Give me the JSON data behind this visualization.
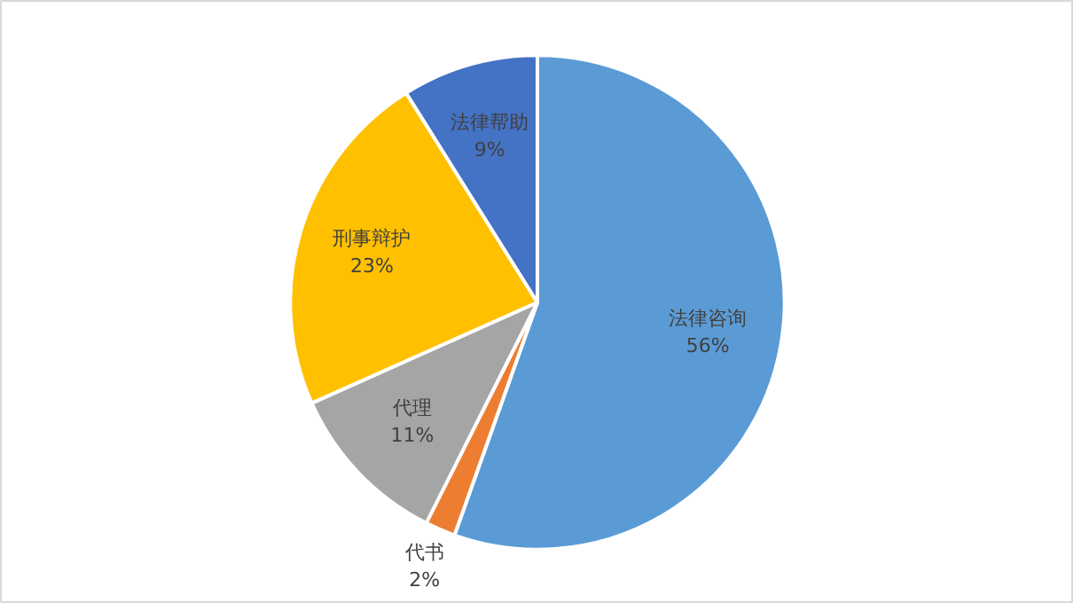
{
  "chart_data": {
    "type": "pie",
    "categories": [
      "法律咨询",
      "代书",
      "代理",
      "刑事辩护",
      "法律帮助"
    ],
    "values": [
      56,
      2,
      11,
      23,
      9
    ],
    "colors": [
      "#5b9bd5",
      "#ed7d31",
      "#a5a5a5",
      "#ffc000",
      "#4472c4"
    ],
    "value_labels": [
      "56%",
      "2%",
      "11%",
      "23%",
      "9%"
    ],
    "legend": false
  }
}
